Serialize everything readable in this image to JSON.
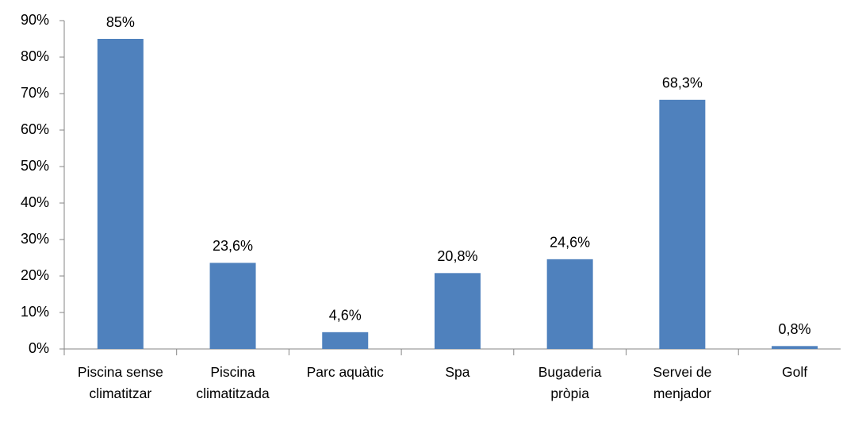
{
  "chart_data": {
    "type": "bar",
    "categories": [
      "Piscina sense climatitzar",
      "Piscina climatitzada",
      "Parc aquàtic",
      "Spa",
      "Bugaderia pròpia",
      "Servei de menjador",
      "Golf"
    ],
    "values": [
      85,
      23.6,
      4.6,
      20.8,
      24.6,
      68.3,
      0.8
    ],
    "value_labels": [
      "85%",
      "23,6%",
      "4,6%",
      "20,8%",
      "24,6%",
      "68,3%",
      "0,8%"
    ],
    "color": "#4f81bd",
    "ylim": [
      0,
      90
    ],
    "yticks": [
      {
        "value": 0,
        "label": "0%"
      },
      {
        "value": 10,
        "label": "10%"
      },
      {
        "value": 20,
        "label": "20%"
      },
      {
        "value": 30,
        "label": "30%"
      },
      {
        "value": 40,
        "label": "40%"
      },
      {
        "value": 50,
        "label": "50%"
      },
      {
        "value": 60,
        "label": "60%"
      },
      {
        "value": 70,
        "label": "70%"
      },
      {
        "value": 80,
        "label": "80%"
      },
      {
        "value": 90,
        "label": "90%"
      }
    ],
    "grid": false
  }
}
